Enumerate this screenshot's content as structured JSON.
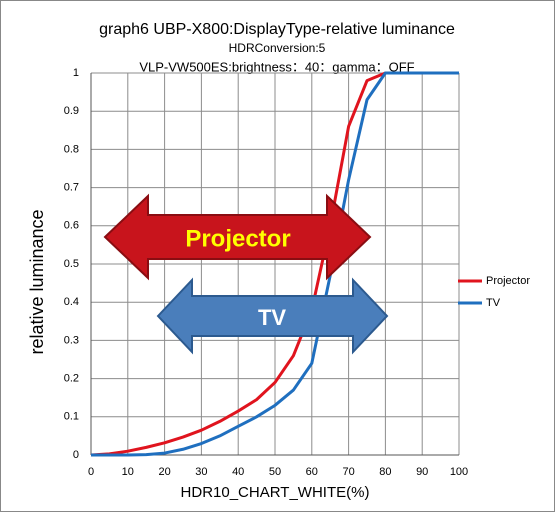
{
  "chart_data": {
    "type": "line",
    "title": "graph6   UBP-X800:DisplayType-relative luminance",
    "subtitle": [
      "HDRConversion:5",
      "VLP-VW500ES:brightness：40：gamma：OFF"
    ],
    "x_label": "HDR10_CHART_WHITE(%)",
    "y_label": "relative luminance",
    "annotations": [
      "Projector",
      "TV"
    ],
    "x": [
      0,
      5,
      10,
      15,
      20,
      25,
      30,
      35,
      40,
      45,
      50,
      55,
      60,
      65,
      70,
      75,
      80,
      85,
      90,
      95,
      100
    ],
    "series": [
      {
        "name": "Projector",
        "color": "#e0141e",
        "values": [
          0,
          0.003,
          0.01,
          0.02,
          0.032,
          0.047,
          0.065,
          0.088,
          0.115,
          0.145,
          0.19,
          0.26,
          0.38,
          0.6,
          0.86,
          0.98,
          1,
          1,
          1,
          1,
          1
        ]
      },
      {
        "name": "TV",
        "color": "#1f6fbf",
        "values": [
          0,
          0,
          0,
          0.001,
          0.005,
          0.015,
          0.03,
          0.05,
          0.075,
          0.1,
          0.13,
          0.17,
          0.24,
          0.47,
          0.72,
          0.93,
          1,
          1,
          1,
          1,
          1
        ]
      }
    ],
    "xlim": [
      0,
      100
    ],
    "xticks": [
      0,
      10,
      20,
      30,
      40,
      50,
      60,
      70,
      80,
      90,
      100
    ],
    "ylim": [
      0,
      1
    ],
    "yticks": [
      0,
      0.1,
      0.2,
      0.3,
      0.4,
      0.5,
      0.6,
      0.7,
      0.8,
      0.9,
      1
    ],
    "grid": true,
    "legend": "right"
  }
}
